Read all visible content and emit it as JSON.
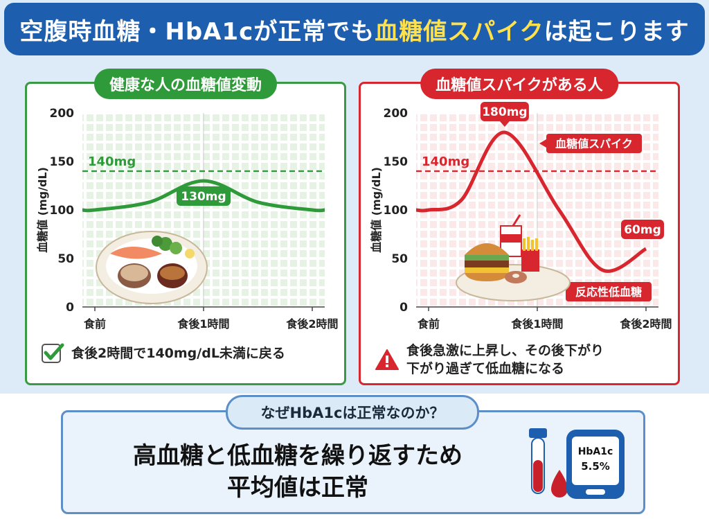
{
  "banner": {
    "part1": "空腹時血糖・HbA1cが正常でも",
    "highlight": "血糖値スパイク",
    "part2": "は起こります"
  },
  "healthy": {
    "title": "健康な人の血糖値変動",
    "peak_label": "130mg",
    "threshold_label": "140mg",
    "note": "食後2時間で140mg/dL未満に戻る",
    "accent": "#2f9a3a"
  },
  "spike": {
    "title": "血糖値スパイクがある人",
    "peak_label": "180mg",
    "threshold_label": "140mg",
    "spike_tag": "血糖値スパイク",
    "low_tag": "反応性低血糖",
    "end_label": "60mg",
    "note_line1": "食後急激に上昇し、その後下がり",
    "note_line2": "下がり過ぎて低血糖になる",
    "accent": "#d7262e"
  },
  "axes": {
    "ylabel": "血糖値 (mg/dL)",
    "yticks": [
      "0",
      "50",
      "100",
      "150",
      "200"
    ],
    "xticks": [
      "食前",
      "食後1時間",
      "食後2時間"
    ]
  },
  "chart_data": [
    {
      "type": "line",
      "title": "健康な人の血糖値変動",
      "ylabel": "血糖値 (mg/dL)",
      "ylim": [
        0,
        200
      ],
      "categories": [
        "食前",
        "食後1時間",
        "食後2時間"
      ],
      "x": [
        0,
        0.5,
        1,
        1.5,
        2
      ],
      "y": [
        100,
        108,
        130,
        108,
        100
      ],
      "threshold": 140
    },
    {
      "type": "line",
      "title": "血糖値スパイクがある人",
      "ylabel": "血糖値 (mg/dL)",
      "ylim": [
        0,
        200
      ],
      "categories": [
        "食前",
        "食後1時間",
        "食後2時間"
      ],
      "x": [
        0,
        0.3,
        0.7,
        1.2,
        1.6,
        2
      ],
      "y": [
        100,
        110,
        180,
        100,
        38,
        60
      ],
      "threshold": 140
    }
  ],
  "why": {
    "title": "なぜHbA1cは正常なのか？",
    "line1": "高血糖と低血糖を繰り返すため",
    "line2": "平均値は正常",
    "device_text1": "HbA1c",
    "device_text2": "5.5%"
  }
}
